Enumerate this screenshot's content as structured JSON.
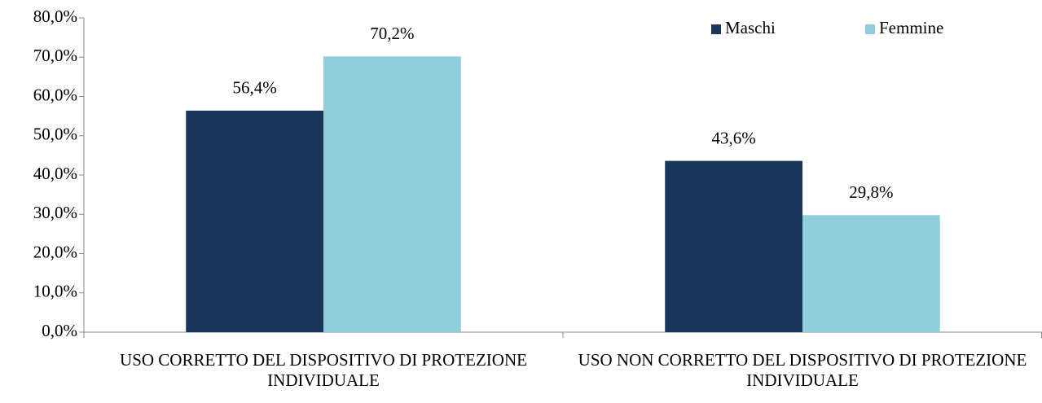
{
  "chart_data": {
    "type": "bar",
    "categories": [
      "USO CORRETTO DEL DISPOSITIVO DI PROTEZIONE INDIVIDUALE",
      "USO NON CORRETTO DEL DISPOSITIVO DI PROTEZIONE INDIVIDUALE"
    ],
    "series": [
      {
        "name": "Maschi",
        "color": "#1b365d",
        "values": [
          56.4,
          43.6
        ],
        "value_labels": [
          "56,4%",
          "43,6%"
        ]
      },
      {
        "name": "Femmine",
        "color": "#92cddc",
        "values": [
          70.2,
          29.8
        ],
        "value_labels": [
          "70,2%",
          "29,8%"
        ]
      }
    ],
    "ylim": [
      0,
      80
    ],
    "yticks": [
      {
        "value": 0,
        "label": "0,0%"
      },
      {
        "value": 10,
        "label": "10,0%"
      },
      {
        "value": 20,
        "label": "20,0%"
      },
      {
        "value": 30,
        "label": "30,0%"
      },
      {
        "value": 40,
        "label": "40,0%"
      },
      {
        "value": 50,
        "label": "50,0%"
      },
      {
        "value": 60,
        "label": "60,0%"
      },
      {
        "value": 70,
        "label": "70,0%"
      },
      {
        "value": 80,
        "label": "80,0%"
      }
    ],
    "grid": false,
    "legend": "top-right"
  }
}
